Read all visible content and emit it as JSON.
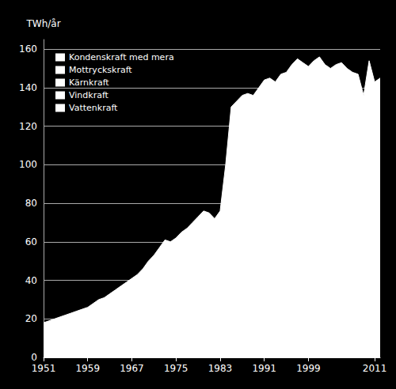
{
  "chart_data": {
    "type": "area",
    "ylabel": "TWh/år",
    "x": [
      1951,
      1952,
      1953,
      1954,
      1955,
      1956,
      1957,
      1958,
      1959,
      1960,
      1961,
      1962,
      1963,
      1964,
      1965,
      1966,
      1967,
      1968,
      1969,
      1970,
      1971,
      1972,
      1973,
      1974,
      1975,
      1976,
      1977,
      1978,
      1979,
      1980,
      1981,
      1982,
      1983,
      1984,
      1985,
      1986,
      1987,
      1988,
      1989,
      1990,
      1991,
      1992,
      1993,
      1994,
      1995,
      1996,
      1997,
      1998,
      1999,
      2000,
      2001,
      2002,
      2003,
      2004,
      2005,
      2006,
      2007,
      2008,
      2009,
      2010,
      2011,
      2012
    ],
    "values": [
      18,
      19,
      20,
      21,
      22,
      23,
      24,
      25,
      26,
      28,
      30,
      31,
      33,
      35,
      37,
      39,
      41,
      43,
      46,
      50,
      53,
      57,
      61,
      60,
      62,
      65,
      67,
      70,
      73,
      76,
      75,
      72,
      76,
      100,
      130,
      133,
      136,
      137,
      136,
      140,
      144,
      145,
      143,
      147,
      148,
      152,
      155,
      153,
      151,
      154,
      156,
      152,
      150,
      152,
      153,
      150,
      148,
      147,
      136,
      154,
      143,
      145
    ],
    "color": "#ffffff",
    "xlim": [
      1951,
      2012
    ],
    "xticks": [
      1951,
      1959,
      1967,
      1975,
      1983,
      1991,
      1999,
      2011
    ],
    "ylim": [
      0,
      165
    ],
    "yticks": [
      0,
      20,
      40,
      60,
      80,
      100,
      120,
      140,
      160
    ],
    "grid": true,
    "legend": "upper left",
    "legend_labels": [
      "Kondenskraft med mera",
      "Mottryckskraft",
      "Kärnkraft",
      "Vindkraft",
      "Vattenkraft"
    ]
  }
}
